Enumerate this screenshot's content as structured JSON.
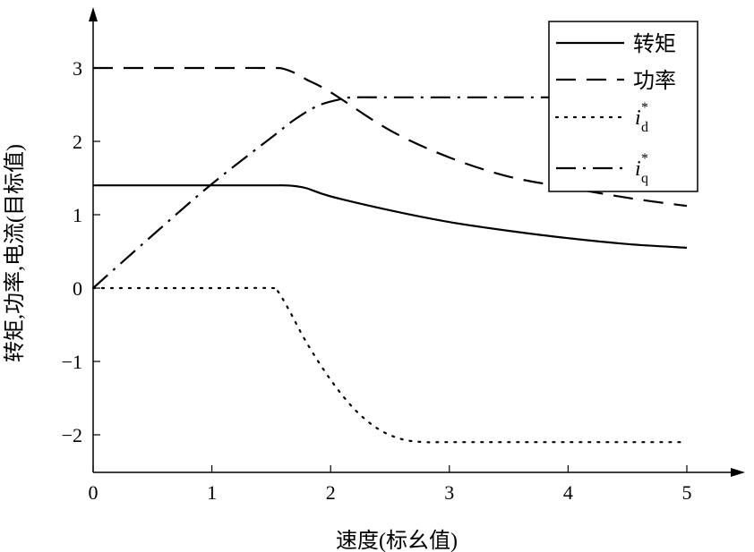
{
  "chart_data": {
    "type": "line",
    "xlabel": "速度(标幺值)",
    "ylabel": "转矩,功率,电流(目标值)",
    "xlim": [
      0,
      5.5
    ],
    "ylim": [
      -2.5,
      3.7
    ],
    "xticks": [
      0,
      1,
      2,
      3,
      4,
      5
    ],
    "xtick_labels": [
      "0",
      "1",
      "2",
      "3",
      "4",
      "5"
    ],
    "yticks": [
      -2,
      -1,
      0,
      1,
      2,
      3
    ],
    "ytick_labels": [
      "−2",
      "−1",
      "0",
      "1",
      "2",
      "3"
    ],
    "grid": false,
    "legend_position": "top-right",
    "series": [
      {
        "name": "转矩",
        "style": "solid",
        "x": [
          0,
          0.5,
          1.0,
          1.5,
          1.6,
          1.7,
          1.8,
          2.0,
          2.5,
          3.0,
          3.5,
          4.0,
          4.5,
          5.0
        ],
        "y": [
          1.4,
          1.4,
          1.4,
          1.4,
          1.4,
          1.39,
          1.36,
          1.25,
          1.06,
          0.9,
          0.78,
          0.68,
          0.6,
          0.55
        ]
      },
      {
        "name": "功率",
        "style": "dashed",
        "x": [
          0,
          0.5,
          1.0,
          1.5,
          1.6,
          1.7,
          1.8,
          2.0,
          2.5,
          3.0,
          3.5,
          4.0,
          4.5,
          5.0
        ],
        "y": [
          3.0,
          3.0,
          3.0,
          3.0,
          2.99,
          2.93,
          2.84,
          2.67,
          2.15,
          1.78,
          1.52,
          1.37,
          1.23,
          1.12
        ]
      },
      {
        "name": "i*_d",
        "label_main": "i",
        "label_sup": "*",
        "label_sub": "d",
        "style": "dotted",
        "x": [
          0,
          0.5,
          1.0,
          1.5,
          1.55,
          1.65,
          1.8,
          2.0,
          2.2,
          2.4,
          2.6,
          2.8,
          3.0,
          4.0,
          5.0
        ],
        "y": [
          0,
          0,
          0,
          0,
          -0.03,
          -0.3,
          -0.75,
          -1.25,
          -1.65,
          -1.92,
          -2.06,
          -2.1,
          -2.1,
          -2.1,
          -2.1
        ]
      },
      {
        "name": "i*_q",
        "label_main": "i",
        "label_sup": "*",
        "label_sub": "q",
        "style": "dashdot",
        "x": [
          0,
          0.5,
          1.0,
          1.5,
          1.7,
          1.9,
          2.1,
          2.2,
          2.5,
          3.0,
          4.0,
          5.0
        ],
        "y": [
          0,
          0.72,
          1.42,
          2.05,
          2.3,
          2.49,
          2.58,
          2.6,
          2.6,
          2.6,
          2.6,
          2.6
        ]
      }
    ]
  }
}
